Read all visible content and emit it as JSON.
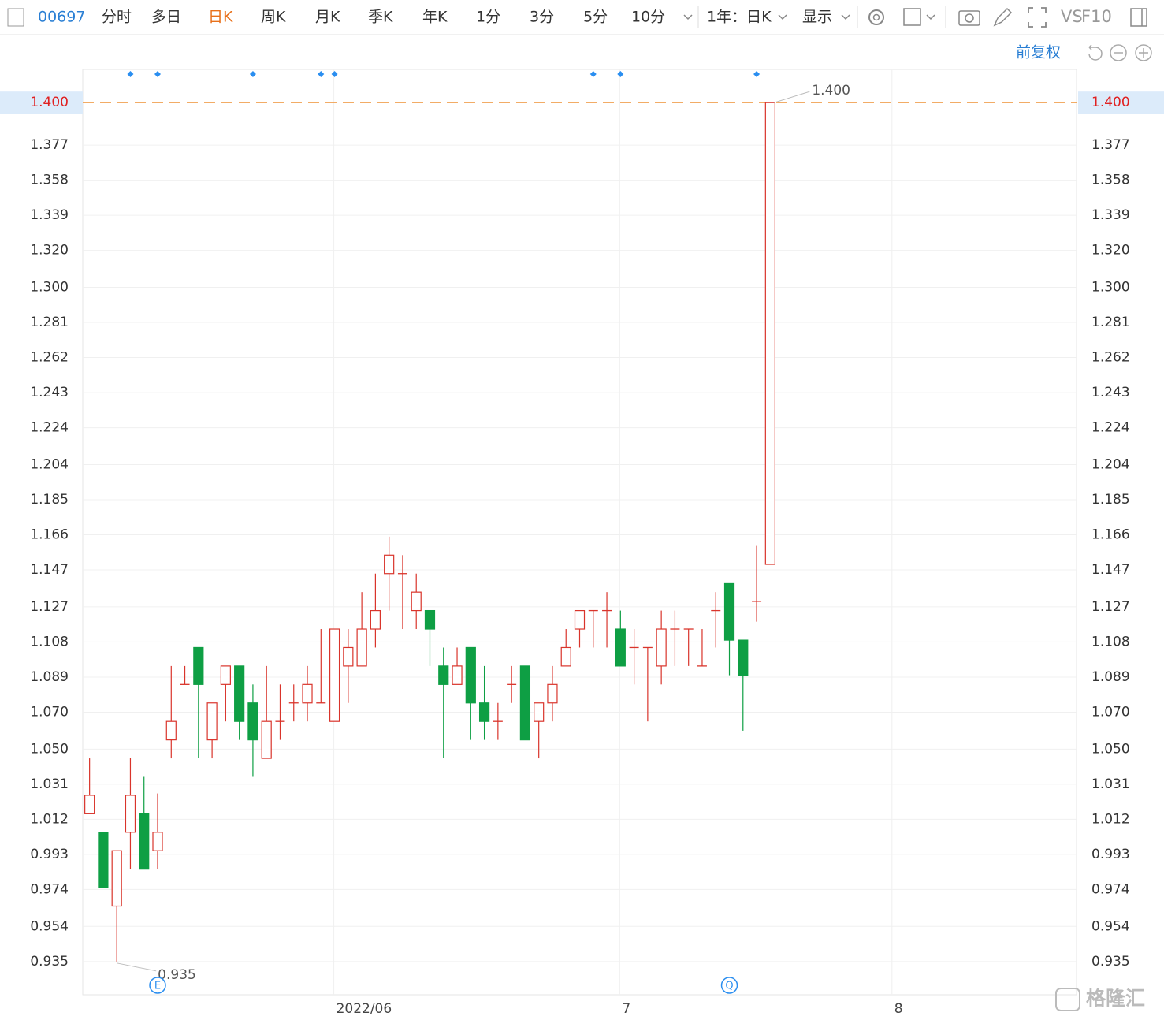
{
  "toolbar": {
    "code": "00697",
    "tabs": [
      "分时",
      "多日",
      "日K",
      "周K",
      "月K",
      "季K",
      "年K",
      "1分",
      "3分",
      "5分",
      "10分"
    ],
    "active_tab": 2,
    "range": "1年：日K",
    "display": "显示",
    "vs": "VS",
    "f10": "F10",
    "adjust": "前复权"
  },
  "watermark": "格隆汇",
  "chart_data": {
    "type": "candlestick",
    "categories": [
      null,
      null,
      null,
      null,
      null,
      null,
      null,
      null,
      null,
      null,
      null,
      null,
      null,
      null,
      null,
      null,
      null,
      null,
      "2022/06",
      null,
      null,
      null,
      null,
      null,
      null,
      null,
      null,
      null,
      null,
      null,
      null,
      null,
      null,
      null,
      null,
      null,
      null,
      null,
      null,
      "7",
      null,
      null,
      null,
      null,
      null,
      null,
      null,
      null,
      null,
      null,
      null,
      null,
      null,
      null,
      null,
      null,
      null,
      null,
      null,
      "8",
      null,
      null,
      null,
      null,
      null,
      null,
      null,
      null,
      null,
      null,
      null,
      null,
      null
    ],
    "open": [
      1.015,
      1.005,
      0.965,
      1.005,
      1.015,
      0.995,
      1.055,
      1.085,
      1.105,
      1.055,
      1.085,
      1.095,
      1.075,
      1.045,
      1.065,
      1.075,
      1.075,
      1.075,
      1.065,
      1.095,
      1.095,
      1.115,
      1.145,
      1.145,
      1.125,
      1.125,
      1.095,
      1.085,
      1.105,
      1.075,
      1.065,
      1.085,
      1.095,
      1.065,
      1.075,
      1.095,
      1.115,
      1.125,
      1.125,
      1.115,
      1.105,
      1.105,
      1.095,
      1.115,
      1.115,
      1.095,
      1.125,
      1.14,
      1.109,
      1.13,
      1.15,
      null,
      null,
      null,
      null,
      null,
      null,
      null,
      null,
      null,
      null,
      null,
      null,
      null,
      null,
      null,
      null,
      null,
      null,
      null,
      null,
      null,
      null
    ],
    "high": [
      1.045,
      1.005,
      0.995,
      1.045,
      1.035,
      1.026,
      1.095,
      1.095,
      1.105,
      1.075,
      1.095,
      1.095,
      1.085,
      1.095,
      1.085,
      1.085,
      1.095,
      1.115,
      1.115,
      1.115,
      1.135,
      1.145,
      1.165,
      1.155,
      1.145,
      1.125,
      1.105,
      1.105,
      1.105,
      1.095,
      1.075,
      1.095,
      1.095,
      1.075,
      1.095,
      1.115,
      1.125,
      1.125,
      1.135,
      1.125,
      1.115,
      1.105,
      1.125,
      1.125,
      1.115,
      1.115,
      1.135,
      1.14,
      1.109,
      1.16,
      1.4,
      null,
      null,
      null,
      null,
      null,
      null,
      null,
      null,
      null,
      null,
      null,
      null,
      null,
      null,
      null,
      null,
      null,
      null,
      null,
      null,
      null,
      null
    ],
    "low": [
      1.015,
      0.975,
      0.935,
      0.985,
      0.985,
      0.985,
      1.045,
      1.085,
      1.045,
      1.045,
      1.065,
      1.055,
      1.035,
      1.045,
      1.055,
      1.065,
      1.065,
      1.075,
      1.065,
      1.075,
      1.095,
      1.105,
      1.125,
      1.115,
      1.115,
      1.095,
      1.045,
      1.085,
      1.055,
      1.055,
      1.055,
      1.075,
      1.055,
      1.045,
      1.065,
      1.095,
      1.105,
      1.105,
      1.105,
      1.095,
      1.085,
      1.065,
      1.085,
      1.095,
      1.095,
      1.095,
      1.105,
      1.09,
      1.06,
      1.119,
      1.15,
      null,
      null,
      null,
      null,
      null,
      null,
      null,
      null,
      null,
      null,
      null,
      null,
      null,
      null,
      null,
      null,
      null,
      null,
      null,
      null,
      null,
      null
    ],
    "close": [
      1.025,
      0.975,
      0.995,
      1.025,
      0.985,
      1.005,
      1.065,
      1.085,
      1.085,
      1.075,
      1.095,
      1.065,
      1.055,
      1.065,
      1.065,
      1.075,
      1.085,
      1.075,
      1.115,
      1.105,
      1.115,
      1.125,
      1.155,
      1.145,
      1.135,
      1.115,
      1.085,
      1.095,
      1.075,
      1.065,
      1.065,
      1.085,
      1.055,
      1.075,
      1.085,
      1.105,
      1.125,
      1.125,
      1.125,
      1.095,
      1.105,
      1.105,
      1.115,
      1.115,
      1.115,
      1.095,
      1.125,
      1.109,
      1.09,
      1.13,
      1.4,
      null,
      null,
      null,
      null,
      null,
      null,
      null,
      null,
      null,
      null,
      null,
      null,
      null,
      null,
      null,
      null,
      null,
      null,
      null,
      null,
      null,
      null
    ],
    "up_color": "#d9342b",
    "down_color": "#0e9f44",
    "ylim": [
      0.917,
      1.418
    ],
    "yticks": [
      {
        "value": 1.377,
        "label": "1.377"
      },
      {
        "value": 1.358,
        "label": "1.358"
      },
      {
        "value": 1.339,
        "label": "1.339"
      },
      {
        "value": 1.32,
        "label": "1.320"
      },
      {
        "value": 1.3,
        "label": "1.300"
      },
      {
        "value": 1.281,
        "label": "1.281"
      },
      {
        "value": 1.262,
        "label": "1.262"
      },
      {
        "value": 1.243,
        "label": "1.243"
      },
      {
        "value": 1.224,
        "label": "1.224"
      },
      {
        "value": 1.204,
        "label": "1.204"
      },
      {
        "value": 1.185,
        "label": "1.185"
      },
      {
        "value": 1.166,
        "label": "1.166"
      },
      {
        "value": 1.147,
        "label": "1.147"
      },
      {
        "value": 1.127,
        "label": "1.127"
      },
      {
        "value": 1.108,
        "label": "1.108"
      },
      {
        "value": 1.089,
        "label": "1.089"
      },
      {
        "value": 1.07,
        "label": "1.070"
      },
      {
        "value": 1.05,
        "label": "1.050"
      },
      {
        "value": 1.031,
        "label": "1.031"
      },
      {
        "value": 1.012,
        "label": "1.012"
      },
      {
        "value": 0.993,
        "label": "0.993"
      },
      {
        "value": 0.974,
        "label": "0.974"
      },
      {
        "value": 0.954,
        "label": "0.954"
      },
      {
        "value": 0.935,
        "label": "0.935"
      }
    ],
    "last_price": {
      "value": 1.4,
      "label": "1.400"
    },
    "max_annotation": {
      "value": 1.4,
      "label": "1.400",
      "index": 50
    },
    "min_annotation": {
      "value": 0.935,
      "label": "0.935",
      "index": 2
    },
    "event_markers": [
      3,
      5,
      12,
      17,
      18,
      37,
      39,
      49
    ],
    "badges": [
      {
        "label": "E",
        "index": 5
      },
      {
        "label": "Q",
        "index": 47
      }
    ],
    "grid": true
  }
}
